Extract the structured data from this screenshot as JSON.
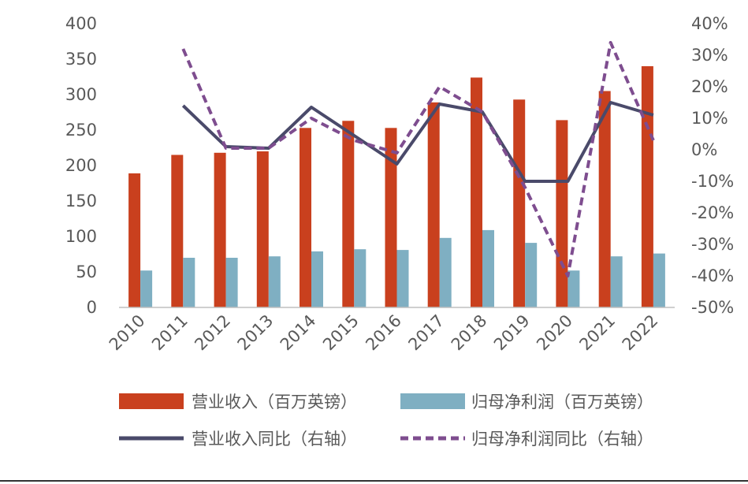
{
  "chart_data": {
    "type": "bar",
    "categories": [
      "2010",
      "2011",
      "2012",
      "2013",
      "2014",
      "2015",
      "2016",
      "2017",
      "2018",
      "2019",
      "2020",
      "2021",
      "2022"
    ],
    "series": [
      {
        "name": "营业收入（百万英镑）",
        "kind": "bar",
        "axis": "left",
        "color": "#C9401E",
        "values": [
          189,
          215,
          218,
          220,
          253,
          263,
          253,
          289,
          324,
          293,
          264,
          305,
          340
        ]
      },
      {
        "name": "归母净利润（百万英镑）",
        "kind": "bar",
        "axis": "left",
        "color": "#7FAFC2",
        "values": [
          52,
          70,
          70,
          72,
          79,
          82,
          81,
          98,
          109,
          91,
          52,
          72,
          76
        ]
      },
      {
        "name": "营业收入同比（右轴）",
        "kind": "line",
        "axis": "right",
        "style": "solid",
        "color": "#4A4A6A",
        "values": [
          null,
          14,
          1,
          0.5,
          13.5,
          4.5,
          -4.5,
          14.5,
          12,
          -10,
          -10,
          15,
          11
        ]
      },
      {
        "name": "归母净利润同比（右轴）",
        "kind": "line",
        "axis": "right",
        "style": "dashed",
        "color": "#7E4D8F",
        "values": [
          null,
          32,
          0.5,
          0.5,
          10,
          3,
          -1,
          20,
          12,
          -12,
          -40,
          34,
          3
        ]
      }
    ],
    "y_left": {
      "min": 0,
      "max": 400,
      "step": 50,
      "tick_labels": [
        "0",
        "50",
        "100",
        "150",
        "200",
        "250",
        "300",
        "350",
        "400"
      ]
    },
    "y_right": {
      "min": -50,
      "max": 40,
      "step": 10,
      "tick_labels": [
        "-50%",
        "-40%",
        "-30%",
        "-20%",
        "-10%",
        "0%",
        "10%",
        "20%",
        "30%",
        "40%"
      ]
    },
    "grid": false,
    "legend_position": "bottom"
  }
}
